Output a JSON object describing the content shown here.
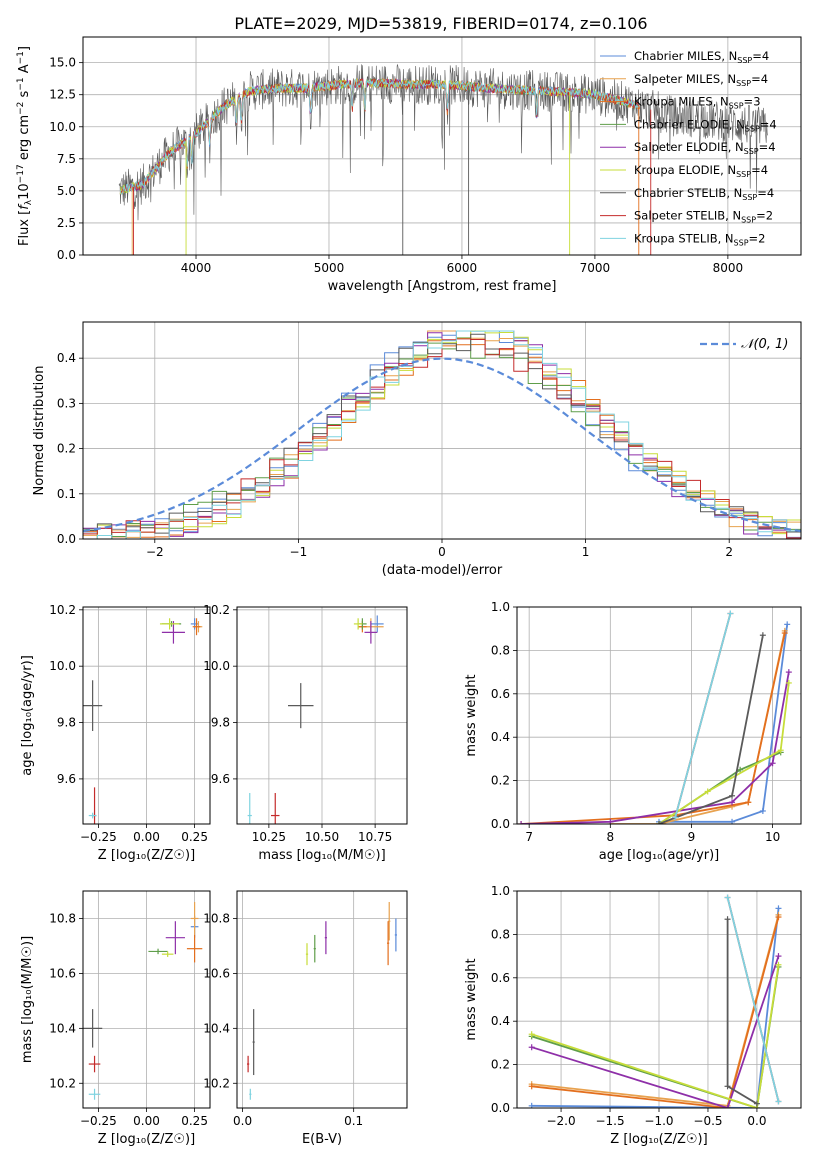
{
  "figure": {
    "title": "PLATE=2029, MJD=53819, FIBERID=0174, z=0.106"
  },
  "series_colors": [
    "#5b8bd9",
    "#e8a24f",
    "#e36f1e",
    "#5f9e4a",
    "#8e2fa8",
    "#c7dd3a",
    "#5a5a5a",
    "#c42b2b",
    "#7fd3e0"
  ],
  "legend_names": [
    "Chabrier MILES",
    "Salpeter MILES",
    "Kroupa MILES",
    "Chabrier ELODIE",
    "Salpeter ELODIE",
    "Kroupa ELODIE",
    "Chabrier STELIB",
    "Salpeter STELIB",
    "Kroupa STELIB"
  ],
  "legend_nssp": [
    "4",
    "4",
    "3",
    "4",
    "4",
    "4",
    "4",
    "2",
    "2"
  ],
  "chart_data": [
    {
      "panel": "spectrum",
      "type": "line",
      "title": "PLATE=2029, MJD=53819, FIBERID=0174, z=0.106",
      "xlabel": "wavelength [Angstrom, rest frame]",
      "ylabel_parts": [
        "Flux [",
        "f",
        "λ",
        "10",
        "−17",
        " erg cm",
        "−2",
        " s",
        "−1",
        " A",
        "−1",
        "]"
      ],
      "xlim": [
        3150,
        8550
      ],
      "ylim": [
        0,
        17
      ],
      "xticks": [
        "4000",
        "5000",
        "6000",
        "7000",
        "8000"
      ],
      "yticks": [
        "0.0",
        "2.5",
        "5.0",
        "7.5",
        "10.0",
        "12.5",
        "15.0"
      ],
      "grid": true,
      "legend_placement": "upper-right",
      "continuum_x": [
        3420,
        3600,
        3800,
        4000,
        4200,
        4400,
        4600,
        4800,
        5000,
        5200,
        5400,
        5600,
        5800,
        6000,
        6200,
        6400,
        6600,
        6800,
        7000,
        7200,
        7400,
        7600,
        7800,
        8000,
        8200,
        8300
      ],
      "continuum_y": [
        5.0,
        5.5,
        8.0,
        9.5,
        11.5,
        12.8,
        13.0,
        13.0,
        13.2,
        13.4,
        13.4,
        13.3,
        13.3,
        13.2,
        13.0,
        12.9,
        12.8,
        12.7,
        12.5,
        12.0,
        11.4,
        10.8,
        10.7,
        10.3,
        10.1,
        9.9
      ]
    },
    {
      "panel": "residuals",
      "type": "histogram",
      "xlabel": "(data-model)/error",
      "ylabel": "Normed distribution",
      "xlim": [
        -2.5,
        2.5
      ],
      "ylim": [
        0,
        0.48
      ],
      "xticks": [
        "−2",
        "−1",
        "0",
        "1",
        "2"
      ],
      "yticks": [
        "0.0",
        "0.1",
        "0.2",
        "0.3",
        "0.4"
      ],
      "grid": true,
      "legend_entry": "𝒩(0, 1)",
      "legend_placement": "upper-right",
      "bin_width": 0.1,
      "bin_start": -2.5
    },
    {
      "panel": "age-vs-Z",
      "type": "scatter",
      "xlabel": "Z [log₁₀(Z/Z☉)]",
      "ylabel": "age  [log₁₀(age/yr)]",
      "xlim": [
        -0.33,
        0.33
      ],
      "ylim": [
        9.44,
        10.21
      ],
      "xticks": [
        "−0.25",
        "0.00",
        "0.25"
      ],
      "yticks": [
        "9.6",
        "9.8",
        "10.0",
        "10.2"
      ],
      "points": [
        {
          "x": 0.25,
          "y": 10.15
        },
        {
          "x": 0.27,
          "y": 10.14
        },
        {
          "x": 0.26,
          "y": 10.14
        },
        {
          "x": 0.13,
          "y": 10.15
        },
        {
          "x": 0.14,
          "y": 10.12
        },
        {
          "x": 0.12,
          "y": 10.15
        },
        {
          "x": -0.28,
          "y": 9.86
        },
        {
          "x": -0.27,
          "y": 9.47
        },
        {
          "x": -0.28,
          "y": 9.47
        }
      ]
    },
    {
      "panel": "age-vs-mass",
      "type": "scatter",
      "xlabel": "mass [log₁₀(M/M☉)]",
      "ylabel": "",
      "xlim": [
        10.1,
        10.9
      ],
      "ylim": [
        9.44,
        10.21
      ],
      "xticks": [
        "10.25",
        "10.50",
        "10.75"
      ],
      "yticks": [
        "9.6",
        "9.8",
        "10.0",
        "10.2"
      ],
      "points": [
        {
          "x": 10.76,
          "y": 10.15
        },
        {
          "x": 10.73,
          "y": 10.14
        },
        {
          "x": 10.69,
          "y": 10.14
        },
        {
          "x": 10.69,
          "y": 10.15
        },
        {
          "x": 10.73,
          "y": 10.12
        },
        {
          "x": 10.67,
          "y": 10.15
        },
        {
          "x": 10.4,
          "y": 9.86
        },
        {
          "x": 10.28,
          "y": 9.47
        },
        {
          "x": 10.16,
          "y": 9.47
        }
      ]
    },
    {
      "panel": "weight-vs-age",
      "type": "line",
      "xlabel": "age  [log₁₀(age/yr)]",
      "ylabel": "mass weight",
      "xlim": [
        6.85,
        10.35
      ],
      "ylim": [
        0,
        1
      ],
      "xticks": [
        "7",
        "8",
        "9",
        "10"
      ],
      "yticks": [
        "0.0",
        "0.2",
        "0.4",
        "0.6",
        "0.8",
        "1.0"
      ],
      "series": [
        {
          "x": [
            8.6,
            9.5,
            9.88,
            10.18
          ],
          "y": [
            0.01,
            0.01,
            0.06,
            0.92
          ]
        },
        {
          "x": [
            8.0,
            8.6,
            9.5,
            9.7,
            10.15
          ],
          "y": [
            0.0,
            0.0,
            0.08,
            0.1,
            0.89
          ]
        },
        {
          "x": [
            6.9,
            8.8,
            9.7,
            10.15
          ],
          "y": [
            0.0,
            0.04,
            0.1,
            0.88
          ]
        },
        {
          "x": [
            8.6,
            9.6,
            10.1
          ],
          "y": [
            0.0,
            0.25,
            0.33
          ]
        },
        {
          "x": [
            6.9,
            8.0,
            9.5,
            10.0,
            10.2
          ],
          "y": [
            0.0,
            0.01,
            0.1,
            0.28,
            0.7
          ]
        },
        {
          "x": [
            8.6,
            9.2,
            10.1,
            10.2
          ],
          "y": [
            0.0,
            0.15,
            0.34,
            0.65
          ]
        },
        {
          "x": [
            8.6,
            9.5,
            9.88
          ],
          "y": [
            0.0,
            0.13,
            0.87
          ]
        },
        {
          "x": [
            8.8,
            9.48
          ],
          "y": [
            0.03,
            0.97
          ]
        },
        {
          "x": [
            8.8,
            9.48
          ],
          "y": [
            0.03,
            0.97
          ]
        }
      ]
    },
    {
      "panel": "mass-vs-Z",
      "type": "scatter",
      "xlabel": "Z [log₁₀(Z/Z☉)]",
      "ylabel": "mass [log₁₀(M/M☉)]",
      "xlim": [
        -0.33,
        0.33
      ],
      "ylim": [
        10.11,
        10.9
      ],
      "xticks": [
        "−0.25",
        "0.00",
        "0.25"
      ],
      "yticks": [
        "10.2",
        "10.4",
        "10.6",
        "10.8"
      ],
      "points": [
        {
          "x": 0.25,
          "y": 10.77
        },
        {
          "x": 0.25,
          "y": 10.8
        },
        {
          "x": 0.25,
          "y": 10.69
        },
        {
          "x": 0.06,
          "y": 10.68
        },
        {
          "x": 0.15,
          "y": 10.73
        },
        {
          "x": 0.11,
          "y": 10.67
        },
        {
          "x": -0.28,
          "y": 10.4
        },
        {
          "x": -0.27,
          "y": 10.27
        },
        {
          "x": -0.27,
          "y": 10.16
        }
      ]
    },
    {
      "panel": "mass-vs-EBV",
      "type": "scatter",
      "xlabel": "E(B-V)",
      "ylabel": "",
      "xlim": [
        -0.005,
        0.148
      ],
      "ylim": [
        10.11,
        10.9
      ],
      "xticks": [
        "0.0",
        "0.1"
      ],
      "yticks": [
        "10.2",
        "10.4",
        "10.6",
        "10.8"
      ],
      "points": [
        {
          "x": 0.138,
          "y": 10.74
        },
        {
          "x": 0.132,
          "y": 10.79
        },
        {
          "x": 0.131,
          "y": 10.71
        },
        {
          "x": 0.065,
          "y": 10.69
        },
        {
          "x": 0.075,
          "y": 10.73
        },
        {
          "x": 0.058,
          "y": 10.67
        },
        {
          "x": 0.01,
          "y": 10.35
        },
        {
          "x": 0.005,
          "y": 10.27
        },
        {
          "x": 0.007,
          "y": 10.16
        }
      ]
    },
    {
      "panel": "weight-vs-Z",
      "type": "line",
      "xlabel": "Z [log₁₀(Z/Z☉)]",
      "ylabel": "mass weight",
      "xlim": [
        -2.45,
        0.45
      ],
      "ylim": [
        0,
        1
      ],
      "xticks": [
        "−2.0",
        "−1.5",
        "−1.0",
        "−0.5",
        "0.0"
      ],
      "yticks": [
        "0.0",
        "0.2",
        "0.4",
        "0.6",
        "0.8",
        "1.0"
      ],
      "series": [
        {
          "x": [
            -2.3,
            0.0,
            0.22
          ],
          "y": [
            0.01,
            0.0,
            0.92
          ]
        },
        {
          "x": [
            -2.3,
            -0.3,
            0.22
          ],
          "y": [
            0.11,
            0.01,
            0.89
          ]
        },
        {
          "x": [
            -2.3,
            -0.3,
            0.22
          ],
          "y": [
            0.1,
            0.0,
            0.88
          ]
        },
        {
          "x": [
            -2.3,
            0.0,
            0.22
          ],
          "y": [
            0.33,
            0.0,
            0.65
          ]
        },
        {
          "x": [
            -2.3,
            -0.3,
            0.22
          ],
          "y": [
            0.28,
            0.0,
            0.7
          ]
        },
        {
          "x": [
            -2.3,
            0.0,
            0.22
          ],
          "y": [
            0.34,
            0.0,
            0.66
          ]
        },
        {
          "x": [
            -0.3,
            -0.3,
            0.0
          ],
          "y": [
            0.87,
            0.1,
            0.02
          ]
        },
        {
          "x": [
            -0.3,
            0.22
          ],
          "y": [
            0.97,
            0.03
          ]
        },
        {
          "x": [
            -0.3,
            0.22
          ],
          "y": [
            0.97,
            0.03
          ]
        }
      ]
    }
  ]
}
